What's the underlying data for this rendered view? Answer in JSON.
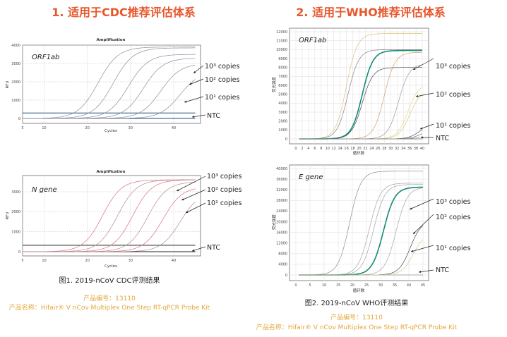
{
  "headings": {
    "cdc": "1. 适用于CDC推荐评估体系",
    "who": "2. 适用于WHO推荐评估体系"
  },
  "captions": {
    "fig1": "图1. 2019-nCoV CDC评测结果",
    "fig2": "图2. 2019-nCoV WHO评测结果"
  },
  "product": {
    "code": "产品编号：13110",
    "name": "产品名称：Hifair® V nCov Multiplex One Step RT-qPCR Probe Kit"
  },
  "colors": {
    "heading": "#e8572c",
    "product": "#e3a73a"
  },
  "chart_data": [
    {
      "type": "line",
      "title": "Amplification",
      "gene": "ORF1ab",
      "xlabel": "Cycles",
      "ylabel": "RFU",
      "xlim": [
        5,
        45
      ],
      "ylim": [
        -200,
        4000
      ],
      "xticks": [
        5,
        10,
        20,
        30,
        40
      ],
      "yticks": [
        0,
        1000,
        2000,
        3000,
        4000
      ],
      "grid": true,
      "threshold": 300,
      "annotations": [
        "10³ copies",
        "10² copies",
        "10¹ copies",
        "NTC"
      ],
      "curves": [
        {
          "midpoint_cycle": 22.5,
          "plateau": 3900,
          "color": "#8a8f9c"
        },
        {
          "midpoint_cycle": 26,
          "plateau": 3850,
          "color": "#8a8f9c"
        },
        {
          "midpoint_cycle": 29.5,
          "plateau": 3500,
          "color": "#8a8f9c"
        },
        {
          "midpoint_cycle": 33,
          "plateau": 3300,
          "color": "#8a8f9c"
        },
        {
          "midpoint_cycle": 37,
          "plateau": 3000,
          "color": "#8a8f9c"
        },
        {
          "midpoint_cycle": 41.5,
          "plateau": 2600,
          "color": "#8a8f9c"
        }
      ]
    },
    {
      "type": "line",
      "title": "Amplification",
      "gene": "N gene",
      "xlabel": "Cycles",
      "ylabel": "RFU",
      "xlim": [
        5,
        45
      ],
      "ylim": [
        -200,
        3600
      ],
      "xticks": [
        5,
        10,
        20,
        30,
        40
      ],
      "yticks": [
        0,
        1000,
        2000,
        3000
      ],
      "grid": true,
      "threshold": 320,
      "annotations": [
        "10³ copies",
        "10² copies",
        "10¹ copies",
        "NTC"
      ],
      "curves": [
        {
          "midpoint_cycle": 23.5,
          "plateau": 3600,
          "color": "#d9707f"
        },
        {
          "midpoint_cycle": 27,
          "plateau": 3600,
          "color": "#b58a95"
        },
        {
          "midpoint_cycle": 30.5,
          "plateau": 3600,
          "color": "#d9707f"
        },
        {
          "midpoint_cycle": 34,
          "plateau": 3500,
          "color": "#b58a95"
        },
        {
          "midpoint_cycle": 37.5,
          "plateau": 3250,
          "color": "#d9707f"
        },
        {
          "midpoint_cycle": 41.5,
          "plateau": 3000,
          "color": "#b58a95"
        }
      ]
    },
    {
      "type": "line",
      "gene": "ORF1ab",
      "xlabel": "循环数",
      "ylabel": "荧光强度",
      "xlim": [
        -2,
        42
      ],
      "ylim": [
        -500,
        12500
      ],
      "xticks": [
        0,
        2,
        4,
        6,
        8,
        10,
        12,
        14,
        16,
        18,
        20,
        22,
        24,
        26,
        28,
        30,
        32,
        34,
        36,
        38,
        40
      ],
      "yticks": [
        0,
        1000,
        2000,
        3000,
        4000,
        5000,
        6000,
        7000,
        8000,
        9000,
        10000,
        11000,
        12000
      ],
      "grid": true,
      "annotations": [
        "10³ copies",
        "10² copies",
        "10¹ copies",
        "NTC"
      ],
      "curves": [
        {
          "midpoint_cycle": 16,
          "plateau": 11800,
          "color": "#d8c27a"
        },
        {
          "midpoint_cycle": 16.5,
          "plateau": 10000,
          "color": "#8a7c8c"
        },
        {
          "midpoint_cycle": 21,
          "plateau": 9900,
          "color": "#138a74",
          "bold": true
        },
        {
          "midpoint_cycle": 21,
          "plateau": 8000,
          "color": "#3b4a55"
        },
        {
          "midpoint_cycle": 28,
          "plateau": 9700,
          "color": "#d89a6a"
        },
        {
          "midpoint_cycle": 32.5,
          "plateau": 8400,
          "color": "#a98fa8"
        },
        {
          "midpoint_cycle": 35.5,
          "plateau": 6200,
          "color": "#e6d77a"
        },
        {
          "midpoint_cycle": 36,
          "plateau": 5400,
          "color": "#d4c88e"
        },
        {
          "midpoint_cycle": 39,
          "plateau": 1600,
          "color": "#555"
        },
        {
          "midpoint_cycle": 39.5,
          "plateau": 1000,
          "color": "#777"
        },
        {
          "midpoint_cycle": 40,
          "plateau": 500,
          "color": "#999"
        }
      ]
    },
    {
      "type": "line",
      "gene": "E gene",
      "xlabel": "循环数",
      "ylabel": "荧光强度",
      "xlim": [
        -2,
        47
      ],
      "ylim": [
        -1500,
        41000
      ],
      "xticks": [
        0,
        5,
        10,
        15,
        20,
        25,
        30,
        35,
        40,
        45
      ],
      "yticks": [
        0,
        4000,
        8000,
        12000,
        16000,
        20000,
        24000,
        28000,
        32000,
        36000,
        40000
      ],
      "grid": true,
      "annotations": [
        "10³ copies",
        "10² copies",
        "10¹ copies",
        "NTC"
      ],
      "curves": [
        {
          "midpoint_cycle": 19,
          "plateau": 39000,
          "color": "#8a8a96"
        },
        {
          "midpoint_cycle": 26,
          "plateau": 34500,
          "color": "#a4a4ac"
        },
        {
          "midpoint_cycle": 27.5,
          "plateau": 34000,
          "color": "#9aa6a0"
        },
        {
          "midpoint_cycle": 31,
          "plateau": 33000,
          "color": "#138a74",
          "bold": true
        },
        {
          "midpoint_cycle": 35.5,
          "plateau": 33000,
          "color": "#a4a4ac"
        },
        {
          "midpoint_cycle": 40.5,
          "plateau": 20500,
          "color": "#3f4a52"
        },
        {
          "midpoint_cycle": 41.5,
          "plateau": 15500,
          "color": "#d4c88e"
        }
      ]
    }
  ]
}
